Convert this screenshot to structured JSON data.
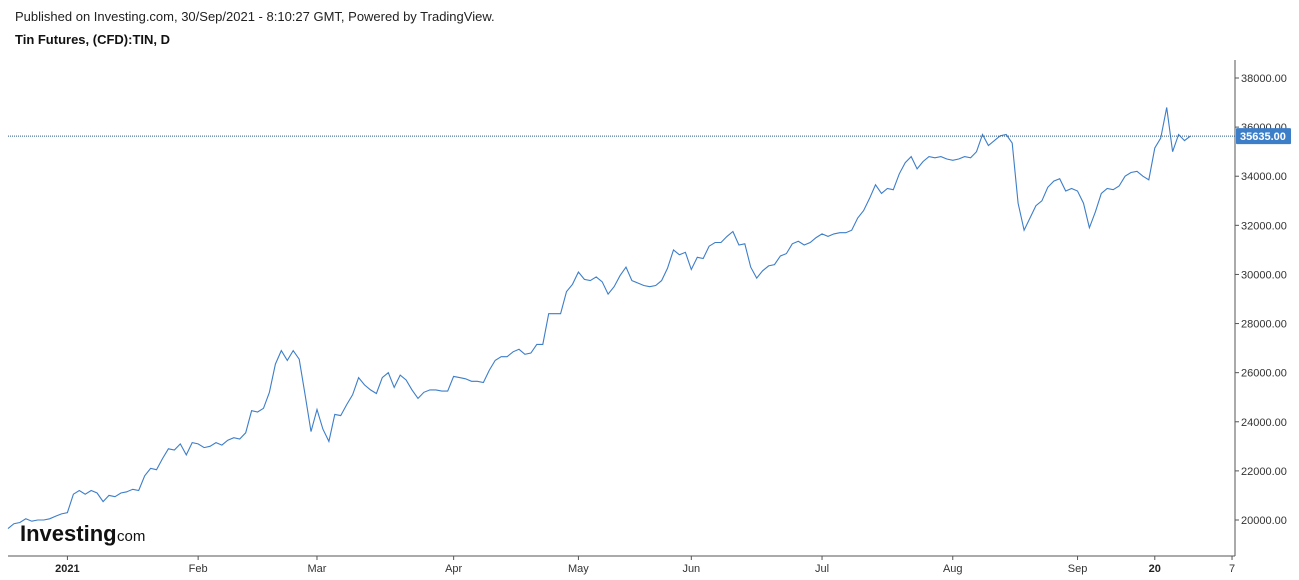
{
  "header": {
    "published": "Published on Investing.com, 30/Sep/2021 - 8:10:27 GMT, Powered by TradingView.",
    "title": "Tin Futures, (CFD):TIN, D"
  },
  "logo": {
    "main": "Investing",
    "dot": ".",
    "domain": "com"
  },
  "colors": {
    "line": "#3d7ec9",
    "badge": "#3d7ec9",
    "axis": "#555555",
    "priceline": "#2a5a8a"
  },
  "chart_data": {
    "type": "line",
    "current_price": 35635.0,
    "current_price_label": "35635.00",
    "y_ticks": [
      {
        "v": 20000,
        "label": "20000.00"
      },
      {
        "v": 22000,
        "label": "22000.00"
      },
      {
        "v": 24000,
        "label": "24000.00"
      },
      {
        "v": 26000,
        "label": "26000.00"
      },
      {
        "v": 28000,
        "label": "28000.00"
      },
      {
        "v": 30000,
        "label": "30000.00"
      },
      {
        "v": 32000,
        "label": "32000.00"
      },
      {
        "v": 34000,
        "label": "34000.00"
      },
      {
        "v": 36000,
        "label": "36000.00"
      },
      {
        "v": 38000,
        "label": "38000.00"
      }
    ],
    "x_ticks": [
      {
        "i": 10,
        "label": "2021",
        "bold": true
      },
      {
        "i": 32,
        "label": "Feb",
        "bold": false
      },
      {
        "i": 52,
        "label": "Mar",
        "bold": false
      },
      {
        "i": 75,
        "label": "Apr",
        "bold": false
      },
      {
        "i": 96,
        "label": "May",
        "bold": false
      },
      {
        "i": 115,
        "label": "Jun",
        "bold": false
      },
      {
        "i": 137,
        "label": "Jul",
        "bold": false
      },
      {
        "i": 159,
        "label": "Aug",
        "bold": false
      },
      {
        "i": 180,
        "label": "Sep",
        "bold": false
      },
      {
        "i": 193,
        "label": "20",
        "bold": true
      },
      {
        "i": 206,
        "label": "7",
        "bold": false
      }
    ],
    "ylim": [
      18700,
      39000
    ],
    "xlim": [
      0,
      206.5
    ],
    "values": [
      19650,
      19850,
      19900,
      20050,
      19950,
      20000,
      20000,
      20050,
      20150,
      20250,
      20300,
      21050,
      21200,
      21050,
      21200,
      21100,
      20750,
      21000,
      20950,
      21100,
      21150,
      21250,
      21200,
      21800,
      22100,
      22050,
      22500,
      22900,
      22850,
      23100,
      22650,
      23150,
      23100,
      22950,
      23000,
      23150,
      23050,
      23250,
      23350,
      23300,
      23550,
      24450,
      24400,
      24550,
      25200,
      26350,
      26900,
      26500,
      26900,
      26550,
      25100,
      23600,
      24500,
      23700,
      23200,
      24300,
      24250,
      24700,
      25100,
      25800,
      25500,
      25300,
      25150,
      25800,
      26000,
      25400,
      25900,
      25700,
      25300,
      24950,
      25200,
      25300,
      25300,
      25250,
      25250,
      25850,
      25800,
      25750,
      25650,
      25650,
      25600,
      26100,
      26500,
      26650,
      26650,
      26850,
      26950,
      26750,
      26800,
      27150,
      27150,
      28400,
      28400,
      28400,
      29300,
      29600,
      30100,
      29800,
      29750,
      29900,
      29700,
      29200,
      29500,
      29950,
      30300,
      29750,
      29650,
      29550,
      29500,
      29550,
      29750,
      30250,
      31000,
      30800,
      30900,
      30200,
      30700,
      30650,
      31150,
      31300,
      31300,
      31550,
      31750,
      31200,
      31250,
      30300,
      29850,
      30150,
      30350,
      30400,
      30750,
      30850,
      31250,
      31350,
      31200,
      31300,
      31500,
      31650,
      31550,
      31650,
      31700,
      31700,
      31800,
      32300,
      32600,
      33100,
      33650,
      33300,
      33500,
      33450,
      34100,
      34550,
      34800,
      34300,
      34600,
      34800,
      34750,
      34800,
      34700,
      34650,
      34700,
      34800,
      34750,
      35000,
      35700,
      35250,
      35450,
      35650,
      35700,
      35350,
      32900,
      31800,
      32300,
      32800,
      33000,
      33550,
      33800,
      33900,
      33400,
      33500,
      33400,
      32900,
      31900,
      32550,
      33300,
      33500,
      33450,
      33600,
      34000,
      34150,
      34200,
      34000,
      33850,
      35150,
      35550,
      36800,
      35000,
      35700,
      35450,
      35635
    ]
  }
}
